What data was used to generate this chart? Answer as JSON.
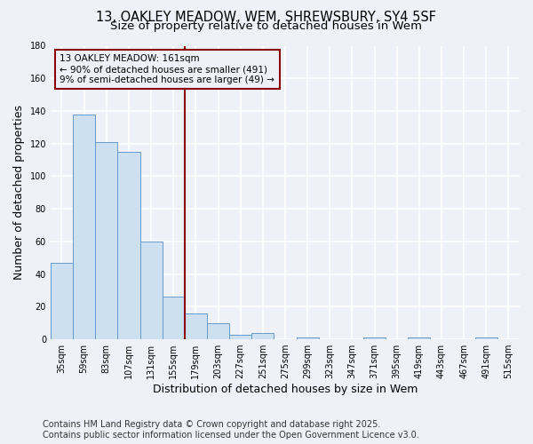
{
  "title_line1": "13, OAKLEY MEADOW, WEM, SHREWSBURY, SY4 5SF",
  "title_line2": "Size of property relative to detached houses in Wem",
  "categories": [
    "35sqm",
    "59sqm",
    "83sqm",
    "107sqm",
    "131sqm",
    "155sqm",
    "179sqm",
    "203sqm",
    "227sqm",
    "251sqm",
    "275sqm",
    "299sqm",
    "323sqm",
    "347sqm",
    "371sqm",
    "395sqm",
    "419sqm",
    "443sqm",
    "467sqm",
    "491sqm",
    "515sqm"
  ],
  "values": [
    47,
    138,
    121,
    115,
    60,
    26,
    16,
    10,
    3,
    4,
    0,
    1,
    0,
    0,
    1,
    0,
    1,
    0,
    0,
    1,
    0
  ],
  "bar_color": "#cce0f0",
  "bar_edge_color": "#6699cc",
  "ylabel": "Number of detached properties",
  "xlabel": "Distribution of detached houses by size in Wem",
  "ylim": [
    0,
    180
  ],
  "yticks": [
    0,
    20,
    40,
    60,
    80,
    100,
    120,
    140,
    160,
    180
  ],
  "property_line_x": 5.5,
  "property_line_color": "#8b0000",
  "annotation_text": "13 OAKLEY MEADOW: 161sqm\n← 90% of detached houses are smaller (491)\n9% of semi-detached houses are larger (49) →",
  "footer_line1": "Contains HM Land Registry data © Crown copyright and database right 2025.",
  "footer_line2": "Contains public sector information licensed under the Open Government Licence v3.0.",
  "background_color": "#eef2f8",
  "grid_color": "#ffffff",
  "title_fontsize": 10.5,
  "subtitle_fontsize": 9.5,
  "axis_label_fontsize": 9,
  "tick_fontsize": 7,
  "annotation_fontsize": 7.5,
  "footer_fontsize": 7
}
